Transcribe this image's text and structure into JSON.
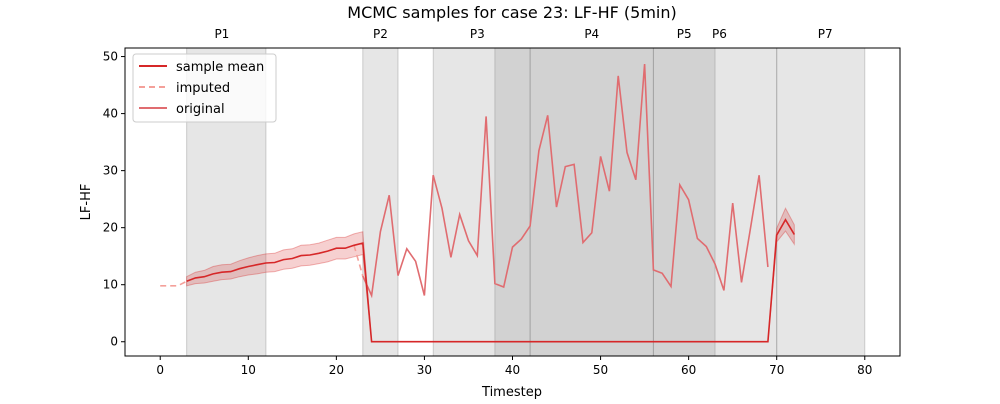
{
  "chart_data": {
    "type": "line",
    "title": "MCMC samples for case 23: LF-HF (5min)",
    "xlabel": "Timestep",
    "ylabel": "LF-HF",
    "xlim": [
      -4,
      84
    ],
    "ylim": [
      -2.5,
      51.5
    ],
    "xticks": [
      0,
      10,
      20,
      30,
      40,
      50,
      60,
      70,
      80
    ],
    "yticks": [
      0,
      10,
      20,
      30,
      40,
      50
    ],
    "grid": false,
    "legend_position": "top-left",
    "legend": [
      {
        "label": "sample mean",
        "style": "solid",
        "color": "#d62728"
      },
      {
        "label": "imputed",
        "style": "dashed",
        "color": "#f4a09a"
      },
      {
        "label": "original",
        "style": "solid",
        "color": "#e06c70"
      }
    ],
    "phases": [
      {
        "label": "P1",
        "start": 3,
        "end": 12
      },
      {
        "label": "P2",
        "start": 23,
        "end": 27
      },
      {
        "label": "P3",
        "start": 31,
        "end": 42
      },
      {
        "label": "P4",
        "start": 38,
        "end": 56
      },
      {
        "label": "P5",
        "start": 56,
        "end": 63
      },
      {
        "label": "P6",
        "start": 42,
        "end": 70
      },
      {
        "label": "P7",
        "start": 70,
        "end": 80
      }
    ],
    "phase_label_positions": [
      7,
      25,
      36,
      49,
      59.5,
      63.5,
      75.5
    ],
    "series": [
      {
        "name": "sample mean",
        "color": "#d62728",
        "x": [
          3,
          4,
          5,
          6,
          7,
          8,
          9,
          10,
          11,
          12,
          13,
          14,
          15,
          16,
          17,
          18,
          19,
          20,
          21,
          22,
          23,
          24,
          25,
          26,
          27,
          28,
          29,
          30,
          31,
          32,
          33,
          34,
          35,
          36,
          37,
          38,
          39,
          40,
          41,
          42,
          43,
          44,
          45,
          46,
          47,
          48,
          49,
          50,
          51,
          52,
          53,
          54,
          55,
          56,
          57,
          58,
          59,
          60,
          61,
          62,
          63,
          64,
          65,
          66,
          67,
          68,
          69,
          70,
          71,
          72
        ],
        "values": [
          10.6,
          11.2,
          11.4,
          11.9,
          12.2,
          12.3,
          12.8,
          13.2,
          13.5,
          13.8,
          13.9,
          14.4,
          14.6,
          15.1,
          15.2,
          15.5,
          15.9,
          16.4,
          16.4,
          16.9,
          17.3,
          0,
          0,
          0,
          0,
          0,
          0,
          0,
          0,
          0,
          0,
          0,
          0,
          0,
          0,
          0,
          0,
          0,
          0,
          0,
          0,
          0,
          0,
          0,
          0,
          0,
          0,
          0,
          0,
          0,
          0,
          0,
          0,
          0,
          0,
          0,
          0,
          0,
          0,
          0,
          0,
          0,
          0,
          0,
          0,
          0,
          0,
          18.7,
          21.4,
          18.8
        ],
        "band_lower": [
          9.8,
          10.2,
          10.3,
          10.6,
          10.9,
          11.0,
          11.4,
          11.7,
          11.9,
          12.2,
          12.3,
          12.7,
          12.9,
          13.3,
          13.4,
          13.7,
          14.0,
          14.5,
          14.5,
          14.9,
          15.3,
          0,
          0,
          0,
          0,
          0,
          0,
          0,
          0,
          0,
          0,
          0,
          0,
          0,
          0,
          0,
          0,
          0,
          0,
          0,
          0,
          0,
          0,
          0,
          0,
          0,
          0,
          0,
          0,
          0,
          0,
          0,
          0,
          0,
          0,
          0,
          0,
          0,
          0,
          0,
          0,
          0,
          0,
          0,
          0,
          0,
          0,
          17.5,
          19.4,
          17.1
        ],
        "band_upper": [
          11.4,
          12.2,
          12.5,
          13.2,
          13.5,
          13.6,
          14.2,
          14.7,
          15.1,
          15.4,
          15.5,
          16.1,
          16.3,
          16.9,
          17.0,
          17.3,
          17.8,
          18.3,
          18.3,
          18.9,
          19.3,
          0,
          0,
          0,
          0,
          0,
          0,
          0,
          0,
          0,
          0,
          0,
          0,
          0,
          0,
          0,
          0,
          0,
          0,
          0,
          0,
          0,
          0,
          0,
          0,
          0,
          0,
          0,
          0,
          0,
          0,
          0,
          0,
          0,
          0,
          0,
          0,
          0,
          0,
          0,
          0,
          0,
          0,
          0,
          0,
          0,
          0,
          19.9,
          23.4,
          20.5
        ]
      },
      {
        "name": "imputed",
        "color": "#f4a09a",
        "segments": [
          {
            "x": [
              0,
              1,
              2,
              3
            ],
            "values": [
              9.8,
              9.8,
              9.8,
              10.6
            ]
          },
          {
            "x": [
              22,
              23
            ],
            "values": [
              16.9,
              11.5
            ]
          }
        ]
      },
      {
        "name": "original",
        "color": "#e06c70",
        "x": [
          23,
          24,
          25,
          26,
          27,
          28,
          29,
          30,
          31,
          32,
          33,
          34,
          35,
          36,
          37,
          38,
          39,
          40,
          41,
          42,
          43,
          44,
          45,
          46,
          47,
          48,
          49,
          50,
          51,
          52,
          53,
          54,
          55,
          56,
          57,
          58,
          59,
          60,
          61,
          62,
          63,
          64,
          65,
          66,
          67,
          68,
          69
        ],
        "values": [
          11.5,
          8.1,
          19.3,
          25.7,
          11.6,
          16.3,
          14.1,
          8.1,
          29.2,
          23.4,
          14.8,
          22.3,
          17.7,
          15.1,
          39.5,
          10.2,
          9.6,
          16.6,
          18.0,
          20.3,
          33.5,
          39.7,
          23.6,
          30.7,
          31.1,
          17.4,
          19.1,
          32.5,
          26.4,
          46.6,
          33.2,
          28.4,
          48.7,
          12.6,
          12.0,
          9.7,
          27.5,
          24.9,
          18.1,
          16.7,
          13.6,
          9.0,
          24.3,
          10.4,
          19.7,
          29.2,
          13.1
        ]
      }
    ]
  }
}
